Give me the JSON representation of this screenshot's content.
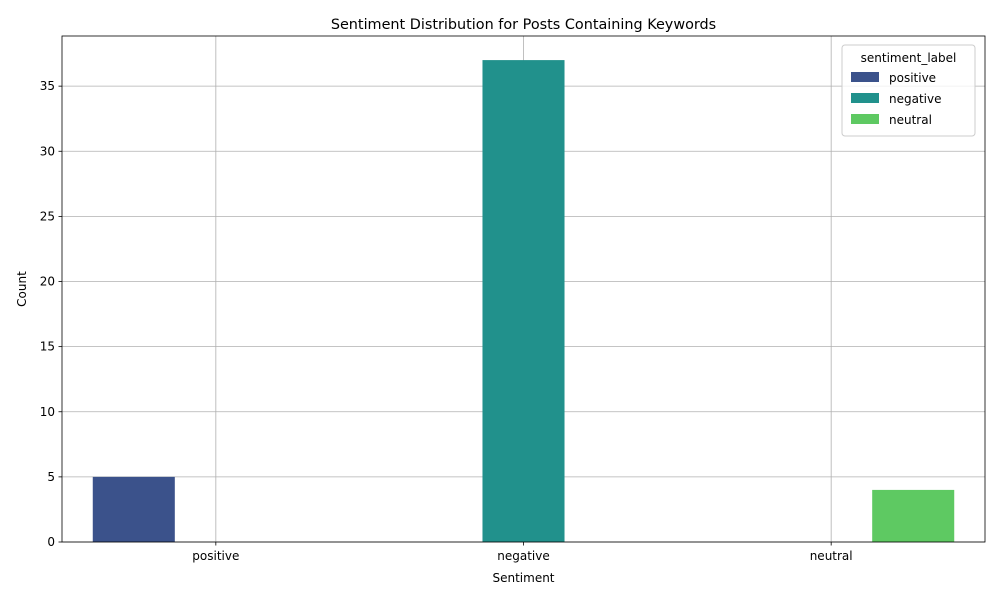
{
  "chart_data": {
    "type": "bar",
    "title": "Sentiment Distribution for Posts Containing Keywords",
    "xlabel": "Sentiment",
    "ylabel": "Count",
    "categories": [
      "positive",
      "negative",
      "neutral"
    ],
    "series": [
      {
        "name": "positive",
        "color": "#3b528b",
        "values": [
          5,
          0,
          0
        ]
      },
      {
        "name": "negative",
        "color": "#21918c",
        "values": [
          0,
          37,
          0
        ]
      },
      {
        "name": "neutral",
        "color": "#5ec962",
        "values": [
          0,
          0,
          4
        ]
      }
    ],
    "ylim": [
      0,
      38.85
    ],
    "yticks": [
      0,
      5,
      10,
      15,
      20,
      25,
      30,
      35
    ],
    "grid": true,
    "legend": {
      "title": "sentiment_label",
      "placement": "top-right"
    }
  }
}
